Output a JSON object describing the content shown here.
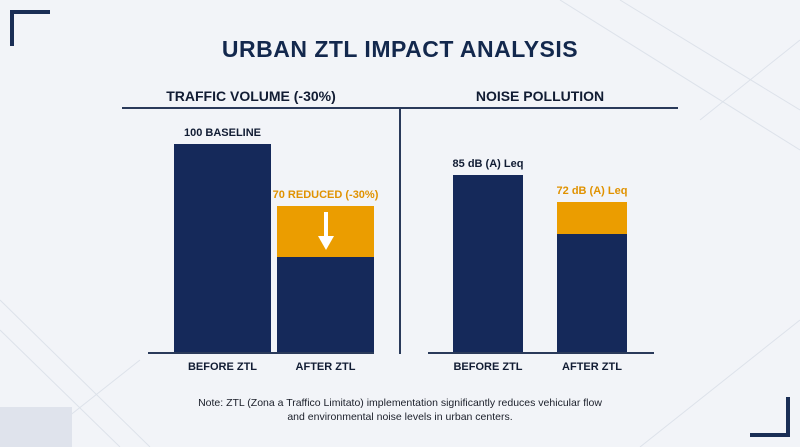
{
  "title": "URBAN ZTL IMPACT ANALYSIS",
  "colors": {
    "navy": "#15295a",
    "accent": "#eb9d00",
    "background": "#f2f4f8",
    "title": "#13284d"
  },
  "chart_data": [
    {
      "type": "bar",
      "title": "TRAFFIC VOLUME (-30%)",
      "categories": [
        "BEFORE ZTL",
        "AFTER ZTL"
      ],
      "values": [
        100,
        70
      ],
      "reduction": [
        0,
        30
      ],
      "value_labels": [
        "100 BASELINE",
        "70 REDUCED (-30%)"
      ],
      "ylim": [
        0,
        100
      ],
      "grid": false,
      "arrow_icon": "down-arrow-icon"
    },
    {
      "type": "bar",
      "title": "NOISE POLLUTION",
      "categories": [
        "BEFORE ZTL",
        "AFTER ZTL"
      ],
      "values": [
        85,
        72
      ],
      "units": "dB (A) Leq",
      "value_labels": [
        "85 dB (A) Leq",
        "72 dB (A) Leq"
      ],
      "ylim": [
        0,
        100
      ],
      "grid": false
    }
  ],
  "note": {
    "line1": "Note: ZTL (Zona a Traffico Limitato) implementation significantly reduces vehicular flow",
    "line2": "and environmental noise levels in urban centers."
  }
}
